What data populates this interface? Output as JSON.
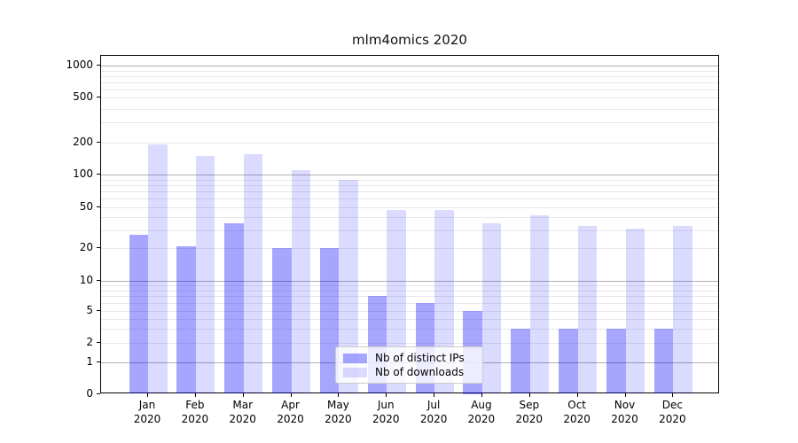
{
  "title": "mlm4omics 2020",
  "legend": {
    "items": [
      {
        "label": "Nb of distinct IPs"
      },
      {
        "label": "Nb of downloads"
      }
    ]
  },
  "chart_data": {
    "type": "bar",
    "title": "mlm4omics 2020",
    "categories": [
      "Jan 2020",
      "Feb 2020",
      "Mar 2020",
      "Apr 2020",
      "May 2020",
      "Jun 2020",
      "Jul 2020",
      "Aug 2020",
      "Sep 2020",
      "Oct 2020",
      "Nov 2020",
      "Dec 2020"
    ],
    "x_tick_line1": [
      "Jan",
      "Feb",
      "Mar",
      "Apr",
      "May",
      "Jun",
      "Jul",
      "Aug",
      "Sep",
      "Oct",
      "Nov",
      "Dec"
    ],
    "x_tick_line2": "2020",
    "series": [
      {
        "name": "Nb of distinct IPs",
        "color": "rgba(0,0,255,0.35)",
        "hex_on_white": "#a6a6ff",
        "values": [
          27,
          21,
          35,
          20,
          20,
          7,
          6,
          5,
          3,
          3,
          3,
          3
        ]
      },
      {
        "name": "Nb of downloads",
        "color": "rgba(0,0,255,0.14)",
        "hex_on_white": "#dcdcff",
        "values": [
          190,
          150,
          155,
          110,
          90,
          47,
          47,
          35,
          42,
          33,
          31,
          33
        ]
      }
    ],
    "y_axis": {
      "scale": "symlog",
      "tick_values": [
        0,
        1,
        2,
        5,
        10,
        20,
        50,
        100,
        200,
        500,
        1000
      ],
      "tick_labels": [
        "0",
        "1",
        "2",
        "5",
        "10",
        "20",
        "50",
        "100",
        "200",
        "500",
        "1000"
      ],
      "minor_grid_values": [
        3,
        4,
        6,
        7,
        8,
        9,
        30,
        40,
        60,
        70,
        80,
        90,
        300,
        400,
        600,
        700,
        800,
        900
      ],
      "major_grid_values": [
        1,
        10,
        100,
        1000
      ]
    },
    "grid": true,
    "legend_position": "lower center",
    "colors": {
      "major_grid": "#b0b0b0",
      "minor_grid": "#e8e8e8",
      "axis": "#000000"
    }
  }
}
